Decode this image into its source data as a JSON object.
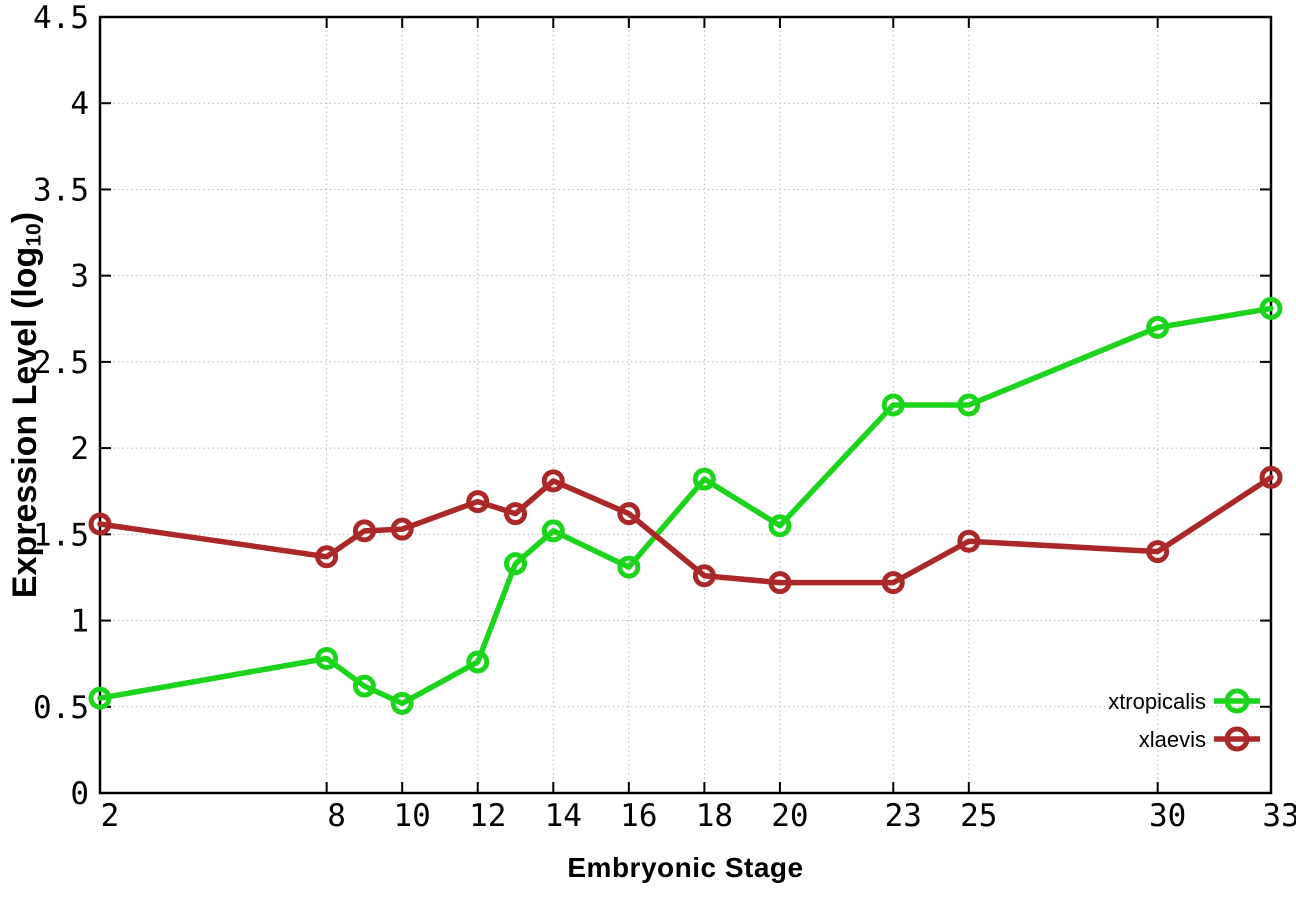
{
  "figure": {
    "background": "#ffffff"
  },
  "axes": {
    "x_title": "Embryonic Stage",
    "y_title_pre": "Expression Level (log",
    "y_title_sub": "10",
    "y_title_post": ")"
  },
  "colors": {
    "xtropicalis": "#1cd41c",
    "xlaevis": "#aa2828",
    "grid": "#b9b9b9",
    "axis": "#000000"
  },
  "chart_data": {
    "type": "line",
    "title": "",
    "xlabel": "Embryonic Stage",
    "ylabel": "Expression Level (log10)",
    "xlim": [
      2,
      33
    ],
    "ylim": [
      0,
      4.5
    ],
    "grid": "dotted",
    "marker": "open-circle",
    "legend_position": "bottom-right",
    "x": [
      2,
      8,
      9,
      10,
      12,
      13,
      14,
      16,
      18,
      20,
      23,
      25,
      30,
      33
    ],
    "series": [
      {
        "name": "xtropicalis",
        "color": "#1cd41c",
        "values": [
          0.55,
          0.78,
          0.62,
          0.52,
          0.76,
          1.33,
          1.52,
          1.31,
          1.82,
          1.55,
          2.25,
          2.25,
          2.7,
          2.81
        ]
      },
      {
        "name": "xlaevis",
        "color": "#aa2828",
        "values": [
          1.56,
          1.37,
          1.52,
          1.53,
          1.69,
          1.62,
          1.81,
          1.62,
          1.26,
          1.22,
          1.22,
          1.46,
          1.4,
          1.83
        ]
      }
    ],
    "x_ticks": [
      2,
      8,
      10,
      12,
      14,
      16,
      18,
      20,
      23,
      25,
      30,
      33
    ],
    "x_tick_labels": [
      "2",
      "8",
      "10",
      "12",
      "14",
      "16",
      "18",
      "20",
      "23",
      "25",
      "30",
      "33"
    ],
    "y_ticks": [
      0,
      0.5,
      1,
      1.5,
      2,
      2.5,
      3,
      3.5,
      4,
      4.5
    ],
    "y_tick_labels": [
      "0",
      "0.5",
      "1",
      "1.5",
      "2",
      "2.5",
      "3",
      "3.5",
      "4",
      "4.5"
    ]
  }
}
